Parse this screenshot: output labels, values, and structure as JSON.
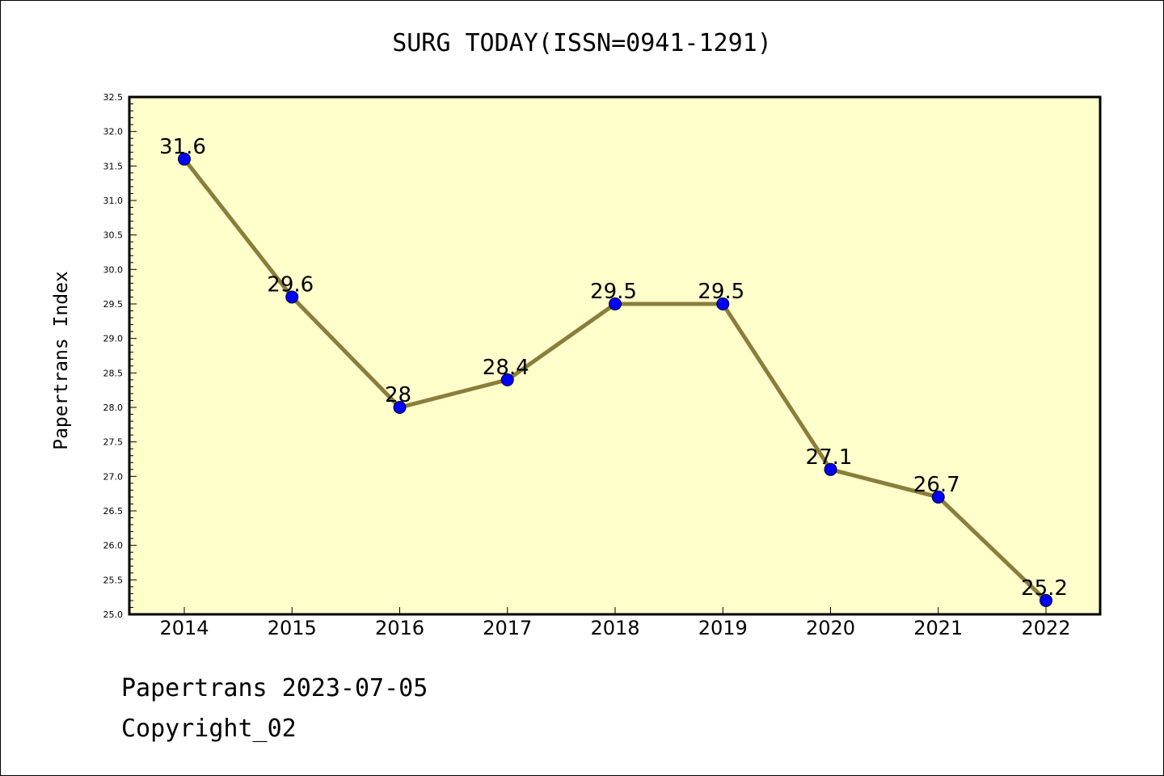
{
  "chart_data": {
    "type": "line",
    "title": "SURG TODAY(ISSN=0941-1291)",
    "xlabel": "",
    "ylabel": "Papertrans Index",
    "categories": [
      "2014",
      "2015",
      "2016",
      "2017",
      "2018",
      "2019",
      "2020",
      "2021",
      "2022"
    ],
    "series": [
      {
        "values": [
          31.6,
          29.6,
          28,
          28.4,
          29.5,
          29.5,
          27.1,
          26.7,
          25.2
        ]
      }
    ],
    "data_labels": [
      "31.6",
      "29.6",
      "28",
      "28.4",
      "29.5",
      "29.5",
      "27.1",
      "26.7",
      "25.2"
    ],
    "ylim": [
      25.0,
      32.5
    ],
    "y_ticks": [
      "25.0",
      "25.5",
      "26.0",
      "26.5",
      "27.0",
      "27.5",
      "28.0",
      "28.5",
      "29.0",
      "29.5",
      "30.0",
      "30.5",
      "31.0",
      "31.5",
      "32.0",
      "32.5"
    ],
    "grid": false,
    "colors": {
      "plot_background": "#ffffcc",
      "line": "#8b7d3a",
      "marker": "#0000ff"
    }
  },
  "footer": {
    "date_line": "Papertrans 2023-07-05",
    "copyright": "Copyright_02"
  }
}
